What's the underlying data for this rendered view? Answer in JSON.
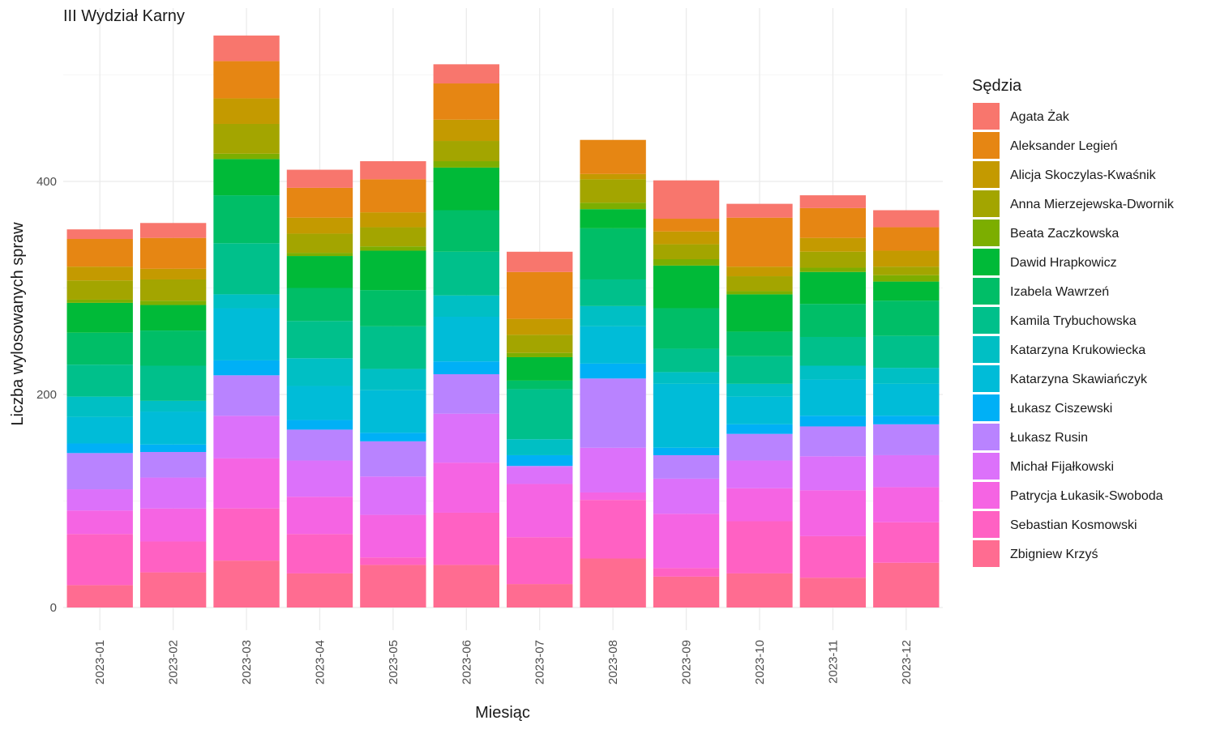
{
  "chart_data": {
    "type": "bar",
    "stacked": true,
    "title": "III Wydział Karny",
    "xlabel": "Miesiąc",
    "ylabel": "Liczba wylosowanych spraw",
    "ylim": [
      0,
      540
    ],
    "yticks": [
      0,
      200,
      400
    ],
    "grid": true,
    "legend": {
      "title": "Sędzia",
      "position": "right"
    },
    "categories": [
      "2023-01",
      "2023-02",
      "2023-03",
      "2023-04",
      "2023-05",
      "2023-06",
      "2023-07",
      "2023-08",
      "2023-09",
      "2023-10",
      "2023-11",
      "2023-12"
    ],
    "series": [
      {
        "name": "Zbigniew Krzyś",
        "color": "#FF6C91",
        "values": [
          21,
          33,
          44,
          32,
          40,
          40,
          22,
          46,
          29,
          32,
          28,
          42
        ]
      },
      {
        "name": "Sebastian Kosmowski",
        "color": "#FF61C3",
        "values": [
          48,
          29,
          49,
          37,
          7,
          49,
          44,
          55,
          8,
          49,
          39,
          38
        ]
      },
      {
        "name": "Patrycja Łukasik-Swoboda",
        "color": "#F564E3",
        "values": [
          22,
          31,
          47,
          35,
          40,
          47,
          50,
          7,
          51,
          31,
          43,
          33
        ]
      },
      {
        "name": "Michał Fijałkowski",
        "color": "#DC71FA",
        "values": [
          20,
          29,
          40,
          34,
          36,
          46,
          16,
          42,
          33,
          26,
          32,
          30
        ]
      },
      {
        "name": "Łukasz Rusin",
        "color": "#B983FF",
        "values": [
          34,
          24,
          38,
          29,
          33,
          37,
          1,
          65,
          22,
          25,
          28,
          29
        ]
      },
      {
        "name": "Łukasz Ciszewski",
        "color": "#00B0F6",
        "values": [
          9,
          7,
          14,
          9,
          8,
          12,
          10,
          14,
          7,
          9,
          10,
          8
        ]
      },
      {
        "name": "Katarzyna Skawiańczyk",
        "color": "#00BCD8",
        "values": [
          25,
          31,
          49,
          32,
          40,
          42,
          0,
          35,
          60,
          26,
          34,
          30
        ]
      },
      {
        "name": "Katarzyna Krukowiecka",
        "color": "#00BFC4",
        "values": [
          19,
          10,
          13,
          26,
          20,
          20,
          15,
          19,
          11,
          12,
          13,
          15
        ]
      },
      {
        "name": "Kamila Trybuchowska",
        "color": "#00C08B",
        "values": [
          30,
          33,
          48,
          35,
          40,
          41,
          47,
          25,
          22,
          26,
          27,
          30
        ]
      },
      {
        "name": "Izabela Wawrzeń",
        "color": "#00BE67",
        "values": [
          30,
          33,
          45,
          31,
          34,
          39,
          8,
          48,
          38,
          23,
          31,
          33
        ]
      },
      {
        "name": "Dawid Hrapkowicz",
        "color": "#00BA38",
        "values": [
          28,
          24,
          34,
          30,
          37,
          40,
          22,
          18,
          40,
          35,
          30,
          18
        ]
      },
      {
        "name": "Beata Zaczkowska",
        "color": "#7CAE00",
        "values": [
          3,
          4,
          5,
          3,
          4,
          6,
          4,
          6,
          6,
          3,
          4,
          6
        ]
      },
      {
        "name": "Anna Mierzejewska-Dwornik",
        "color": "#A3A500",
        "values": [
          18,
          20,
          28,
          18,
          18,
          19,
          17,
          22,
          14,
          14,
          15,
          8
        ]
      },
      {
        "name": "Alicja Skoczylas-Kwaśnik",
        "color": "#C49A00",
        "values": [
          13,
          10,
          24,
          15,
          14,
          20,
          15,
          5,
          12,
          9,
          13,
          15
        ]
      },
      {
        "name": "Aleksander Legień",
        "color": "#E68613",
        "values": [
          26,
          29,
          35,
          28,
          31,
          34,
          44,
          32,
          12,
          46,
          28,
          22
        ]
      },
      {
        "name": "Agata Żak",
        "color": "#F8766D",
        "values": [
          9,
          14,
          24,
          17,
          17,
          18,
          19,
          0,
          36,
          13,
          12,
          16
        ]
      }
    ]
  }
}
